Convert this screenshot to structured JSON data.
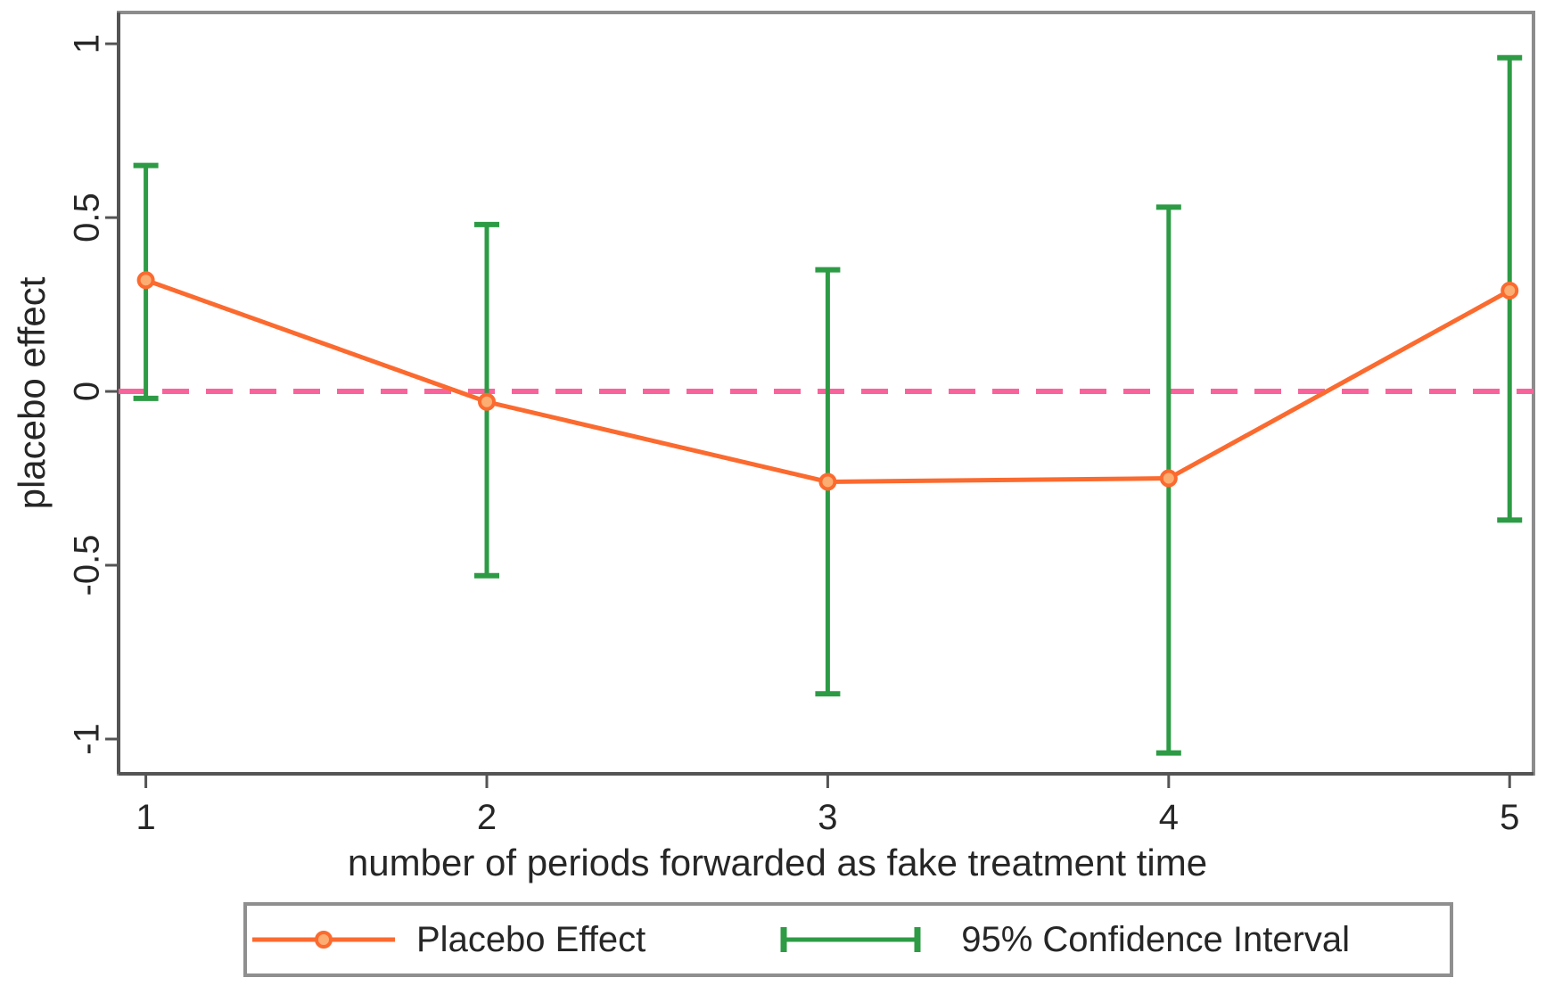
{
  "chart_data": {
    "type": "line",
    "title": "",
    "xlabel": "number of periods forwarded as fake treatment time",
    "ylabel": "placebo effect",
    "x": [
      1,
      2,
      3,
      4,
      5
    ],
    "x_tick_labels": [
      "1",
      "2",
      "3",
      "4",
      "5"
    ],
    "y_tick_values": [
      1,
      0.5,
      0,
      -0.5,
      -1
    ],
    "y_tick_labels": [
      "1",
      "0.5",
      "0",
      "-0.5",
      "-1"
    ],
    "xlim": [
      0.92,
      5.07
    ],
    "ylim": [
      -1.1,
      1.09
    ],
    "grid": false,
    "legend_position": "bottom",
    "series": [
      {
        "name": "Placebo Effect",
        "values": [
          0.32,
          -0.03,
          -0.26,
          -0.25,
          0.29
        ],
        "marker": "circle"
      }
    ],
    "confidence_intervals": {
      "name": "95% Confidence Interval",
      "lower": [
        -0.02,
        -0.53,
        -0.87,
        -1.04,
        -0.37
      ],
      "upper": [
        0.65,
        0.48,
        0.35,
        0.53,
        0.96
      ]
    },
    "zero_line": {
      "y": 0,
      "style": "dashed"
    },
    "colors": {
      "series": "#fb6a2f",
      "marker_fill": "#fcae72",
      "confidence": "#2d9b45",
      "zero_line": "#f9639b",
      "axis_dark": "#545454",
      "border": "#8c8c8c",
      "text": "#262626"
    }
  }
}
